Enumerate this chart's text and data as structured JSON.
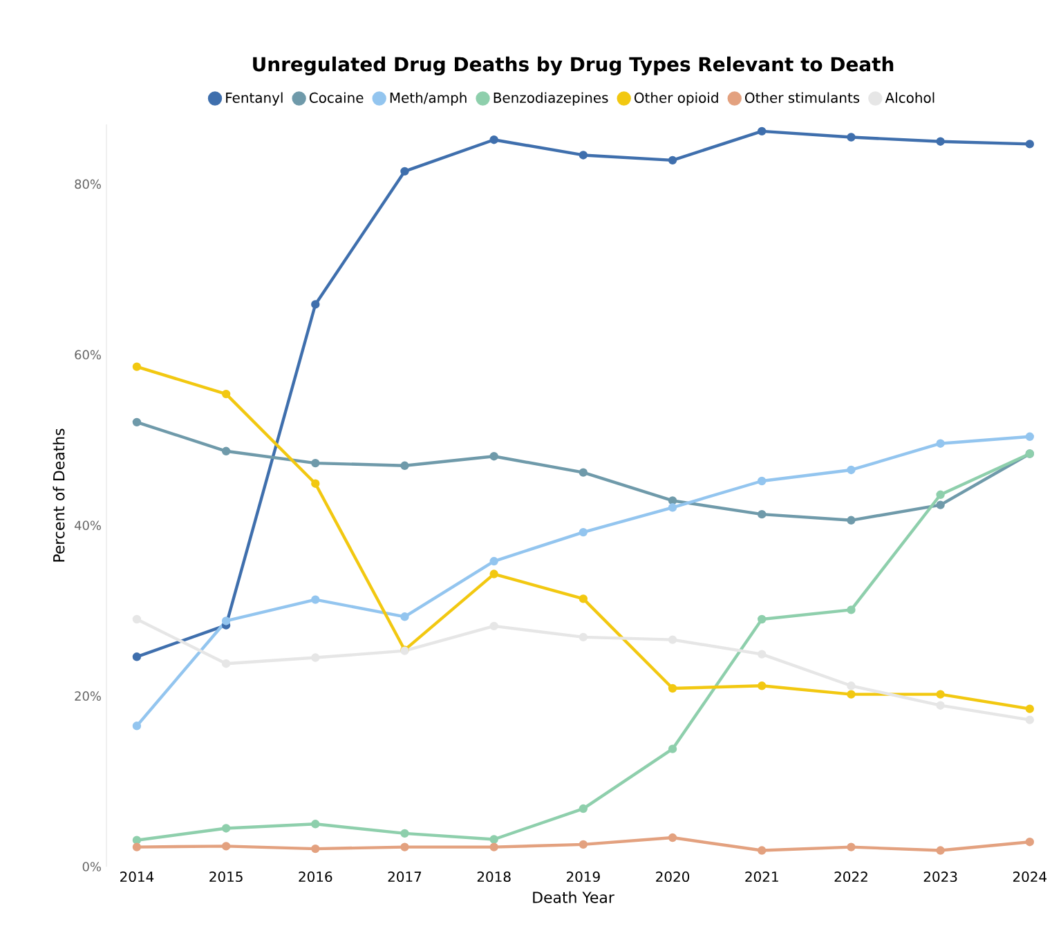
{
  "chart_data": {
    "type": "line",
    "title": "Unregulated Drug Deaths by Drug Types Relevant to Death",
    "xlabel": "Death Year",
    "ylabel": "Percent of Deaths",
    "categories": [
      "2014",
      "2015",
      "2016",
      "2017",
      "2018",
      "2019",
      "2020",
      "2021",
      "2022",
      "2023",
      "2024"
    ],
    "series": [
      {
        "name": "Fentanyl",
        "color": "#3f6fad",
        "values": [
          24.6,
          28.3,
          65.9,
          81.5,
          85.2,
          83.4,
          82.8,
          86.2,
          85.5,
          85.0,
          84.7
        ]
      },
      {
        "name": "Cocaine",
        "color": "#6f9aaa",
        "values": [
          52.1,
          48.7,
          47.3,
          47.0,
          48.1,
          46.2,
          42.9,
          41.3,
          40.6,
          42.4,
          48.4
        ]
      },
      {
        "name": "Meth/amph",
        "color": "#93c5ef",
        "values": [
          16.5,
          28.8,
          31.3,
          29.3,
          35.8,
          39.2,
          42.1,
          45.2,
          46.5,
          49.6,
          50.4
        ]
      },
      {
        "name": "Benzodiazepines",
        "color": "#8ecfac",
        "values": [
          3.1,
          4.5,
          5.0,
          3.9,
          3.2,
          6.8,
          13.8,
          29.0,
          30.1,
          43.6,
          48.4
        ]
      },
      {
        "name": "Other opioid",
        "color": "#f2c811",
        "values": [
          58.6,
          55.4,
          44.9,
          25.4,
          34.3,
          31.4,
          20.9,
          21.2,
          20.2,
          20.2,
          18.5
        ]
      },
      {
        "name": "Other stimulants",
        "color": "#e3a17f",
        "values": [
          2.3,
          2.4,
          2.1,
          2.3,
          2.3,
          2.6,
          3.4,
          1.9,
          2.3,
          1.9,
          2.9
        ]
      },
      {
        "name": "Alcohol",
        "color": "#e6e6e6",
        "values": [
          29.0,
          23.8,
          24.5,
          25.3,
          28.2,
          26.9,
          26.6,
          24.9,
          21.2,
          18.9,
          17.2
        ]
      }
    ],
    "ylim": [
      0,
      87
    ],
    "yticks": [
      {
        "value": 0,
        "label": "0%"
      },
      {
        "value": 20,
        "label": "20%"
      },
      {
        "value": 40,
        "label": "40%"
      },
      {
        "value": 60,
        "label": "60%"
      },
      {
        "value": 80,
        "label": "80%"
      }
    ],
    "legend": "top",
    "grid": false,
    "marker": "circle",
    "line_style": "solid"
  }
}
